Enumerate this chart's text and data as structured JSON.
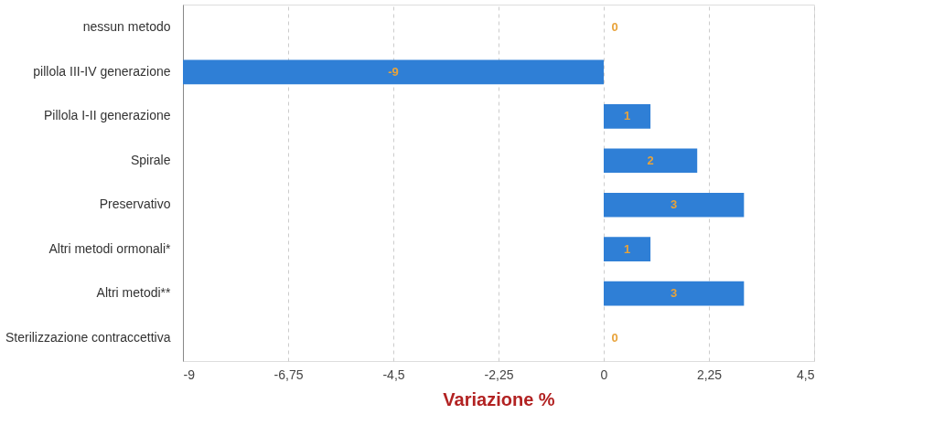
{
  "chart_data": {
    "type": "bar",
    "orientation": "horizontal",
    "categories": [
      "nessun metodo",
      "pillola III-IV generazione",
      "Pillola I-II generazione",
      "Spirale",
      "Preservativo",
      "Altri metodi ormonali*",
      "Altri metodi**",
      "Sterilizzazione contraccettiva"
    ],
    "values": [
      0,
      -9,
      1,
      2,
      3,
      1,
      3,
      0
    ],
    "color": "#2f7fd6",
    "data_labels": true,
    "xlim": [
      -9,
      4.5
    ],
    "xticks": [
      -9,
      {
        "value": -6.75,
        "label": "-6,75"
      },
      {
        "value": -4.5,
        "label": "-4,5"
      },
      {
        "value": -2.25,
        "label": "-2,25"
      },
      0,
      {
        "value": 2.25,
        "label": "2,25"
      },
      {
        "value": 4.5,
        "label": "4,5"
      }
    ],
    "xlabel": "Variazione %",
    "grid": "x"
  }
}
